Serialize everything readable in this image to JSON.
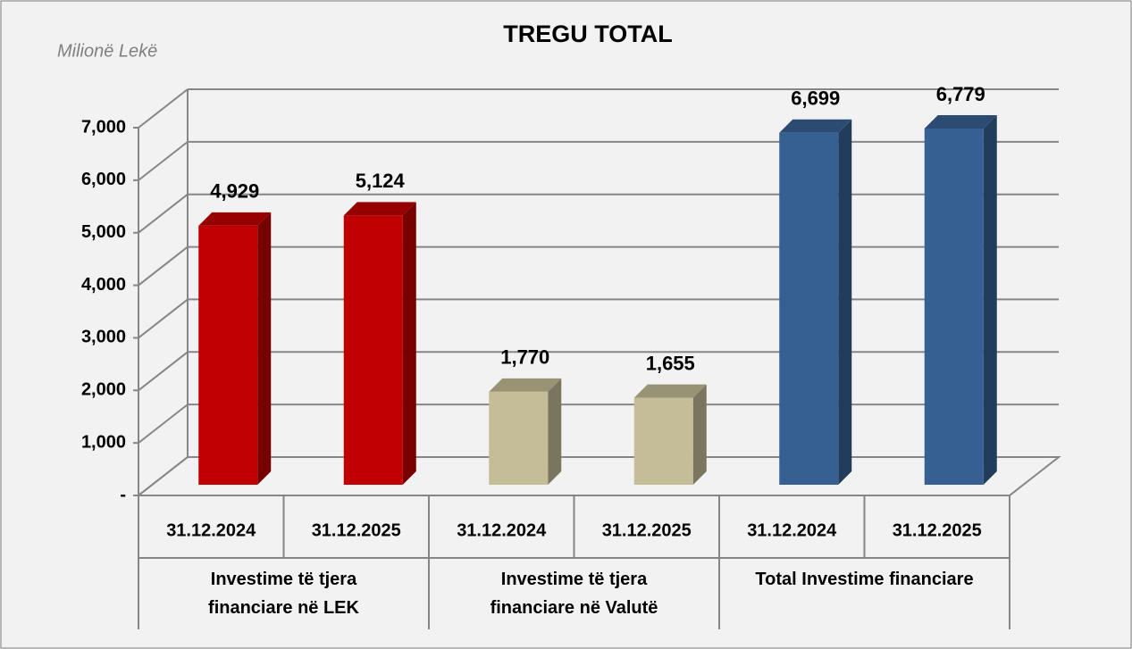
{
  "chart_data": {
    "type": "bar3d",
    "title": "TREGU TOTAL",
    "unit_label": "Milionë Lekë",
    "categories": [
      "31.12.2024",
      "31.12.2025",
      "31.12.2024",
      "31.12.2025",
      "31.12.2024",
      "31.12.2025"
    ],
    "groups": [
      "Investime të tjera financiare në LEK",
      "Investime të tjera financiare në Valutë",
      "Total Investime financiare"
    ],
    "values": [
      4929,
      5124,
      1770,
      1655,
      6699,
      6779
    ],
    "value_labels": [
      "4,929",
      "5,124",
      "1,770",
      "1,655",
      "6,699",
      "6,779"
    ],
    "colors": [
      "#c00000",
      "#c00000",
      "#c4bd97",
      "#c4bd97",
      "#376092",
      "#376092"
    ],
    "ylim": [
      0,
      7000
    ],
    "yticks": [
      {
        "value": 0,
        "label": "-"
      },
      {
        "value": 1000,
        "label": "1,000"
      },
      {
        "value": 2000,
        "label": "2,000"
      },
      {
        "value": 3000,
        "label": "3,000"
      },
      {
        "value": 4000,
        "label": "4,000"
      },
      {
        "value": 5000,
        "label": "5,000"
      },
      {
        "value": 6000,
        "label": "6,000"
      },
      {
        "value": 7000,
        "label": "7,000"
      }
    ],
    "grid": true
  }
}
